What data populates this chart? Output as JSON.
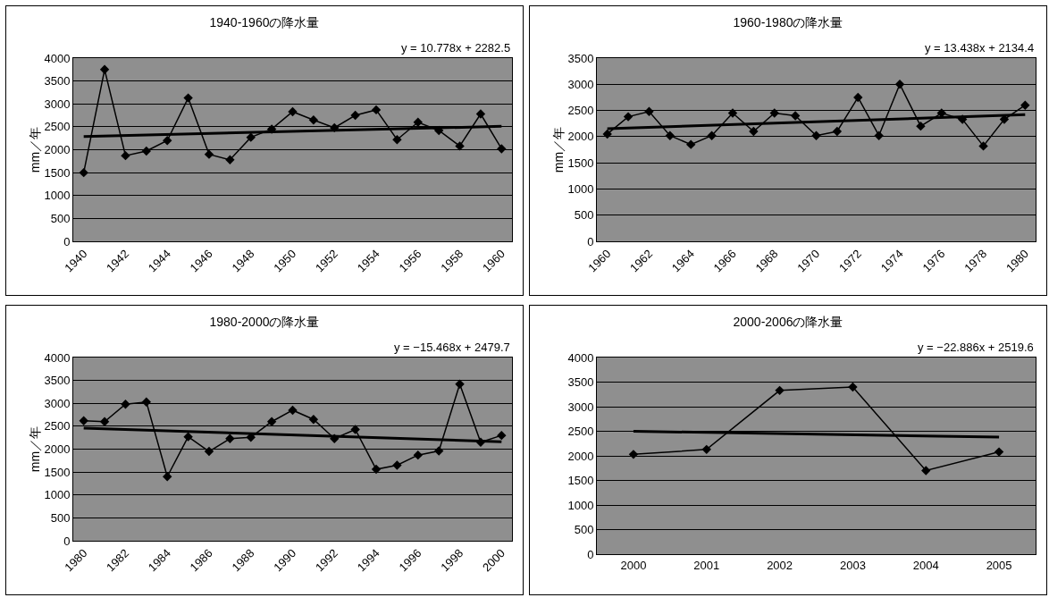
{
  "chart_data": [
    {
      "type": "line",
      "title": "1940-1960の降水量",
      "ylabel": "mm／年",
      "annotations": [
        "y = 10.778x + 2282.5"
      ],
      "x": [
        1940,
        1941,
        1942,
        1943,
        1944,
        1945,
        1946,
        1947,
        1948,
        1949,
        1950,
        1951,
        1952,
        1953,
        1954,
        1955,
        1956,
        1957,
        1958,
        1959,
        1960
      ],
      "xlim": [
        1939.5,
        1960.5
      ],
      "xticks": [
        1940,
        1942,
        1944,
        1946,
        1948,
        1950,
        1952,
        1954,
        1956,
        1958,
        1960
      ],
      "ylim": [
        0,
        4000
      ],
      "yticks": [
        0,
        500,
        1000,
        1500,
        2000,
        2500,
        3000,
        3500,
        4000
      ],
      "grid": "y",
      "marker": "diamond",
      "series": [
        {
          "color": "#000000",
          "values": [
            1500,
            3750,
            1870,
            1970,
            2200,
            3130,
            1900,
            1780,
            2270,
            2450,
            2830,
            2650,
            2480,
            2750,
            2870,
            2220,
            2600,
            2420,
            2080,
            2780,
            2020
          ]
        },
        {
          "type": "line",
          "color": "#000000",
          "marker": "none",
          "x": [
            1940,
            1960
          ],
          "values": [
            2290,
            2510
          ]
        }
      ]
    },
    {
      "type": "line",
      "title": "1960-1980の降水量",
      "ylabel": "mm／年",
      "annotations": [
        "y = 13.438x + 2134.4"
      ],
      "x": [
        1960,
        1961,
        1962,
        1963,
        1964,
        1965,
        1966,
        1967,
        1968,
        1969,
        1970,
        1971,
        1972,
        1973,
        1974,
        1975,
        1976,
        1977,
        1978,
        1979,
        1980
      ],
      "xlim": [
        1959.5,
        1980.5
      ],
      "xticks": [
        1960,
        1962,
        1964,
        1966,
        1968,
        1970,
        1972,
        1974,
        1976,
        1978,
        1980
      ],
      "ylim": [
        0,
        3500
      ],
      "yticks": [
        0,
        500,
        1000,
        1500,
        2000,
        2500,
        3000,
        3500
      ],
      "grid": "y",
      "marker": "diamond",
      "series": [
        {
          "color": "#000000",
          "values": [
            2050,
            2380,
            2480,
            2020,
            1850,
            2020,
            2450,
            2100,
            2450,
            2400,
            2020,
            2100,
            2750,
            2020,
            3000,
            2200,
            2450,
            2330,
            1820,
            2330,
            2600
          ]
        },
        {
          "type": "line",
          "color": "#000000",
          "marker": "none",
          "x": [
            1960,
            1980
          ],
          "values": [
            2150,
            2420
          ]
        }
      ]
    },
    {
      "type": "line",
      "title": "1980-2000の降水量",
      "ylabel": "mm／年",
      "annotations": [
        "y = −15.468x + 2479.7"
      ],
      "x": [
        1980,
        1981,
        1982,
        1983,
        1984,
        1985,
        1986,
        1987,
        1988,
        1989,
        1990,
        1991,
        1992,
        1993,
        1994,
        1995,
        1996,
        1997,
        1998,
        1999,
        2000
      ],
      "xlim": [
        1979.5,
        2000.5
      ],
      "xticks": [
        1980,
        1982,
        1984,
        1986,
        1988,
        1990,
        1992,
        1994,
        1996,
        1998,
        2000
      ],
      "ylim": [
        0,
        4000
      ],
      "yticks": [
        0,
        500,
        1000,
        1500,
        2000,
        2500,
        3000,
        3500,
        4000
      ],
      "grid": "y",
      "marker": "diamond",
      "series": [
        {
          "color": "#000000",
          "values": [
            2620,
            2600,
            2980,
            3030,
            1400,
            2270,
            1950,
            2230,
            2260,
            2600,
            2850,
            2650,
            2230,
            2430,
            1560,
            1650,
            1870,
            1960,
            3420,
            2150,
            2300
          ]
        },
        {
          "type": "line",
          "color": "#000000",
          "marker": "none",
          "x": [
            1980,
            2000
          ],
          "values": [
            2460,
            2160
          ]
        }
      ]
    },
    {
      "type": "line",
      "title": "2000-2006の降水量",
      "annotations": [
        "y = −22.886x + 2519.6"
      ],
      "x": [
        2000,
        2001,
        2002,
        2003,
        2004,
        2005
      ],
      "xlim": [
        1999.5,
        2005.5
      ],
      "xticks": [
        2000,
        2001,
        2002,
        2003,
        2004,
        2005
      ],
      "ylim": [
        0,
        4000
      ],
      "yticks": [
        0,
        500,
        1000,
        1500,
        2000,
        2500,
        3000,
        3500,
        4000
      ],
      "grid": "y",
      "marker": "diamond",
      "series": [
        {
          "color": "#000000",
          "values": [
            2030,
            2130,
            3330,
            3400,
            1700,
            2080
          ]
        },
        {
          "type": "line",
          "color": "#000000",
          "marker": "none",
          "x": [
            2000,
            2005
          ],
          "values": [
            2500,
            2380
          ]
        }
      ]
    }
  ]
}
